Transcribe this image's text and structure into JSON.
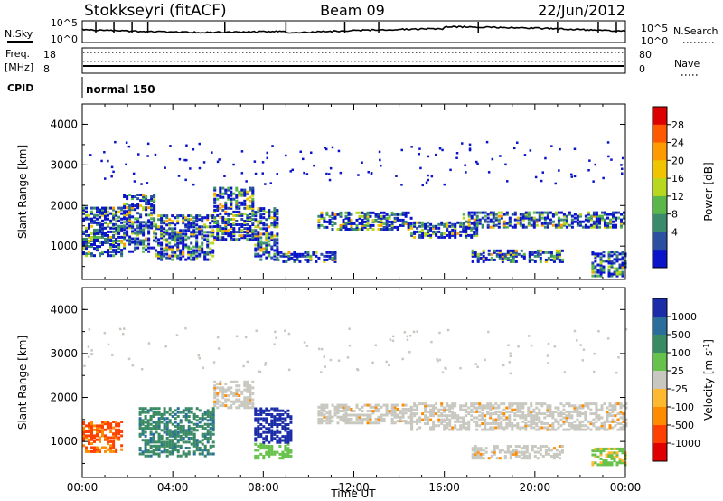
{
  "header": {
    "station": "Stokkseyri (fitACF)",
    "beam": "Beam 09",
    "date": "22/Jun/2012"
  },
  "labels": {
    "nsky": "N.Sky",
    "nsearch": "N.Search",
    "freq": "Freq.",
    "mhz": "[MHz]",
    "nave": "Nave",
    "cpid": "CPID",
    "cpid_value": "normal 150",
    "time_axis": "Time UT",
    "slant_range": "Slant Range [km]",
    "power_label": "Power [dB]",
    "velocity_label": "Velocity"
  },
  "noise_panel": {
    "left_ticks": [
      "10^5",
      "10^0"
    ],
    "right_ticks": [
      "10^5",
      "10^0"
    ]
  },
  "freq_panel": {
    "left_ticks": [
      "18",
      "8"
    ],
    "right_ticks": [
      "80",
      "0"
    ]
  },
  "colorbars": {
    "power": {
      "ticks": [
        "28",
        "24",
        "20",
        "16",
        "12",
        "8",
        "4"
      ],
      "colors": [
        "#dd0000",
        "#ff5a00",
        "#ff9a00",
        "#f0c400",
        "#b8d820",
        "#5ab84a",
        "#3a8a6c",
        "#2a50a0",
        "#0a14c8"
      ]
    },
    "velocity": {
      "ticks": [
        "1000",
        "500",
        "100",
        "25",
        "-25",
        "-100",
        "-500",
        "-1000"
      ],
      "colors": [
        "#1a2ca8",
        "#2a6e9c",
        "#3a8a64",
        "#66c24a",
        "#c8c8c0",
        "#ffb830",
        "#ff8c00",
        "#ff4000",
        "#e00000"
      ]
    }
  },
  "chart_data": [
    {
      "type": "heatmap",
      "panel": "power",
      "xlabel": "",
      "ylabel": "Slant Range [km]",
      "ylim": [
        180,
        4500
      ],
      "y_ticks": [
        "1000",
        "2000",
        "3000",
        "4000"
      ],
      "unit_label": "Power [dB]",
      "echo_regions_hours_km": [
        {
          "t": [
            0.0,
            1.8
          ],
          "r": [
            800,
            2000
          ]
        },
        {
          "t": [
            1.8,
            3.2
          ],
          "r": [
            900,
            2300
          ]
        },
        {
          "t": [
            3.2,
            5.8
          ],
          "r": [
            700,
            1800
          ]
        },
        {
          "t": [
            5.8,
            7.6
          ],
          "r": [
            1200,
            2500
          ]
        },
        {
          "t": [
            7.6,
            8.6
          ],
          "r": [
            700,
            2000
          ]
        },
        {
          "t": [
            8.6,
            11.2
          ],
          "r": [
            650,
            900
          ]
        },
        {
          "t": [
            10.4,
            14.5
          ],
          "r": [
            1450,
            1900
          ]
        },
        {
          "t": [
            14.5,
            17.5
          ],
          "r": [
            1250,
            1650
          ]
        },
        {
          "t": [
            16.8,
            24.0
          ],
          "r": [
            1500,
            1900
          ]
        },
        {
          "t": [
            17.2,
            21.2
          ],
          "r": [
            650,
            950
          ]
        },
        {
          "t": [
            22.5,
            24.0
          ],
          "r": [
            300,
            900
          ]
        }
      ]
    },
    {
      "type": "heatmap",
      "panel": "velocity",
      "xlabel": "Time UT",
      "ylabel": "Slant Range [km]",
      "ylim": [
        180,
        4500
      ],
      "y_ticks": [
        "1000",
        "2000",
        "3000",
        "4000"
      ],
      "x_ticks": [
        "00:00",
        "04:00",
        "08:00",
        "12:00",
        "16:00",
        "20:00",
        "00:00"
      ],
      "unit_label": "Velocity [m s^-1]",
      "echo_regions_hours_km": [
        {
          "t": [
            0.0,
            1.8
          ],
          "r": [
            800,
            1500
          ]
        },
        {
          "t": [
            2.5,
            5.8
          ],
          "r": [
            700,
            1800
          ]
        },
        {
          "t": [
            5.8,
            7.6
          ],
          "r": [
            1800,
            2400
          ]
        },
        {
          "t": [
            7.6,
            9.2
          ],
          "r": [
            650,
            1800
          ]
        },
        {
          "t": [
            10.4,
            14.5
          ],
          "r": [
            1450,
            1900
          ]
        },
        {
          "t": [
            14.5,
            24.0
          ],
          "r": [
            1300,
            1900
          ]
        },
        {
          "t": [
            17.2,
            21.2
          ],
          "r": [
            650,
            950
          ]
        },
        {
          "t": [
            22.5,
            24.0
          ],
          "r": [
            500,
            900
          ]
        }
      ]
    }
  ]
}
